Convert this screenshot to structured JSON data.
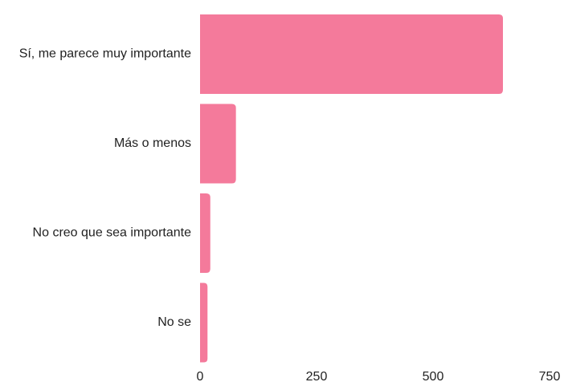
{
  "chart_data": {
    "type": "bar",
    "orientation": "horizontal",
    "categories": [
      "Sí, me parece muy importante",
      "Más o menos",
      "No creo que sea importante",
      "No se"
    ],
    "values": [
      650,
      77,
      22,
      16
    ],
    "xlim": [
      0,
      750
    ],
    "xticks": [
      "0",
      "250",
      "500",
      "750"
    ],
    "title": "",
    "xlabel": "",
    "ylabel": "",
    "grid": false,
    "bar_color": "#f47a9b"
  }
}
